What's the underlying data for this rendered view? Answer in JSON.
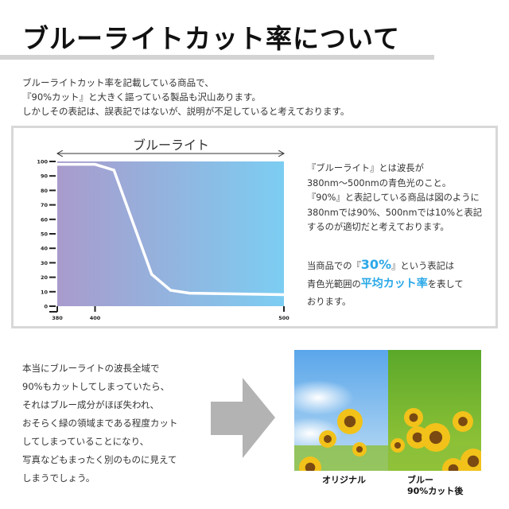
{
  "title": "ブルーライトカット率について",
  "intro": [
    "ブルーライトカット率を記載している商品で、",
    "『90%カット』と大きく謳っている製品も沢山あります。",
    "しかしその表記は、誤表記ではないが、説明が不足していると考えております。"
  ],
  "chart_data": {
    "type": "area",
    "title": "ブルーライト",
    "x": [
      380,
      400,
      410,
      430,
      440,
      450,
      500
    ],
    "values": [
      98,
      98,
      94,
      22,
      11,
      9,
      8
    ],
    "xlim": [
      380,
      500
    ],
    "ylim": [
      0,
      100
    ],
    "xticks": [
      "380",
      "400",
      "500"
    ],
    "yticks": [
      "0",
      "10",
      "20",
      "30",
      "40",
      "50",
      "60",
      "70",
      "80",
      "90",
      "100"
    ],
    "gradient": [
      "#a99bcc",
      "#7ccdf2"
    ],
    "line_color": "#ffffff"
  },
  "side": {
    "lines": [
      "『ブルーライト』とは波長が",
      "380nm〜500nmの青色光のこと。",
      "『90%』と表記している商品は図のように",
      "380nmでは90%、500nmでは10%と表記",
      "するのが適切だと考えております。"
    ],
    "l2a": "当商品での『",
    "l2b": "30%",
    "l2c": "』という表記は",
    "l3a": "青色光範囲の",
    "l3b": "平均カット率",
    "l3c": "を表して",
    "l4": "おります。"
  },
  "lower": [
    "本当にブルーライトの波長全域で",
    "90%もカットしてしまっていたら、",
    "それはブルー成分がほぼ失われ、",
    "おそらく緑の領域まである程度カット",
    "してしまっていることになり、",
    "写真などもまったく別のものに見えて",
    "しまうでしょう。"
  ],
  "captions": {
    "original": "オリジナル",
    "after1": "ブルー",
    "after2": "90%カット後"
  },
  "colors": {
    "accent": "#2aa8e8",
    "arrow": "#b3b3b3"
  }
}
